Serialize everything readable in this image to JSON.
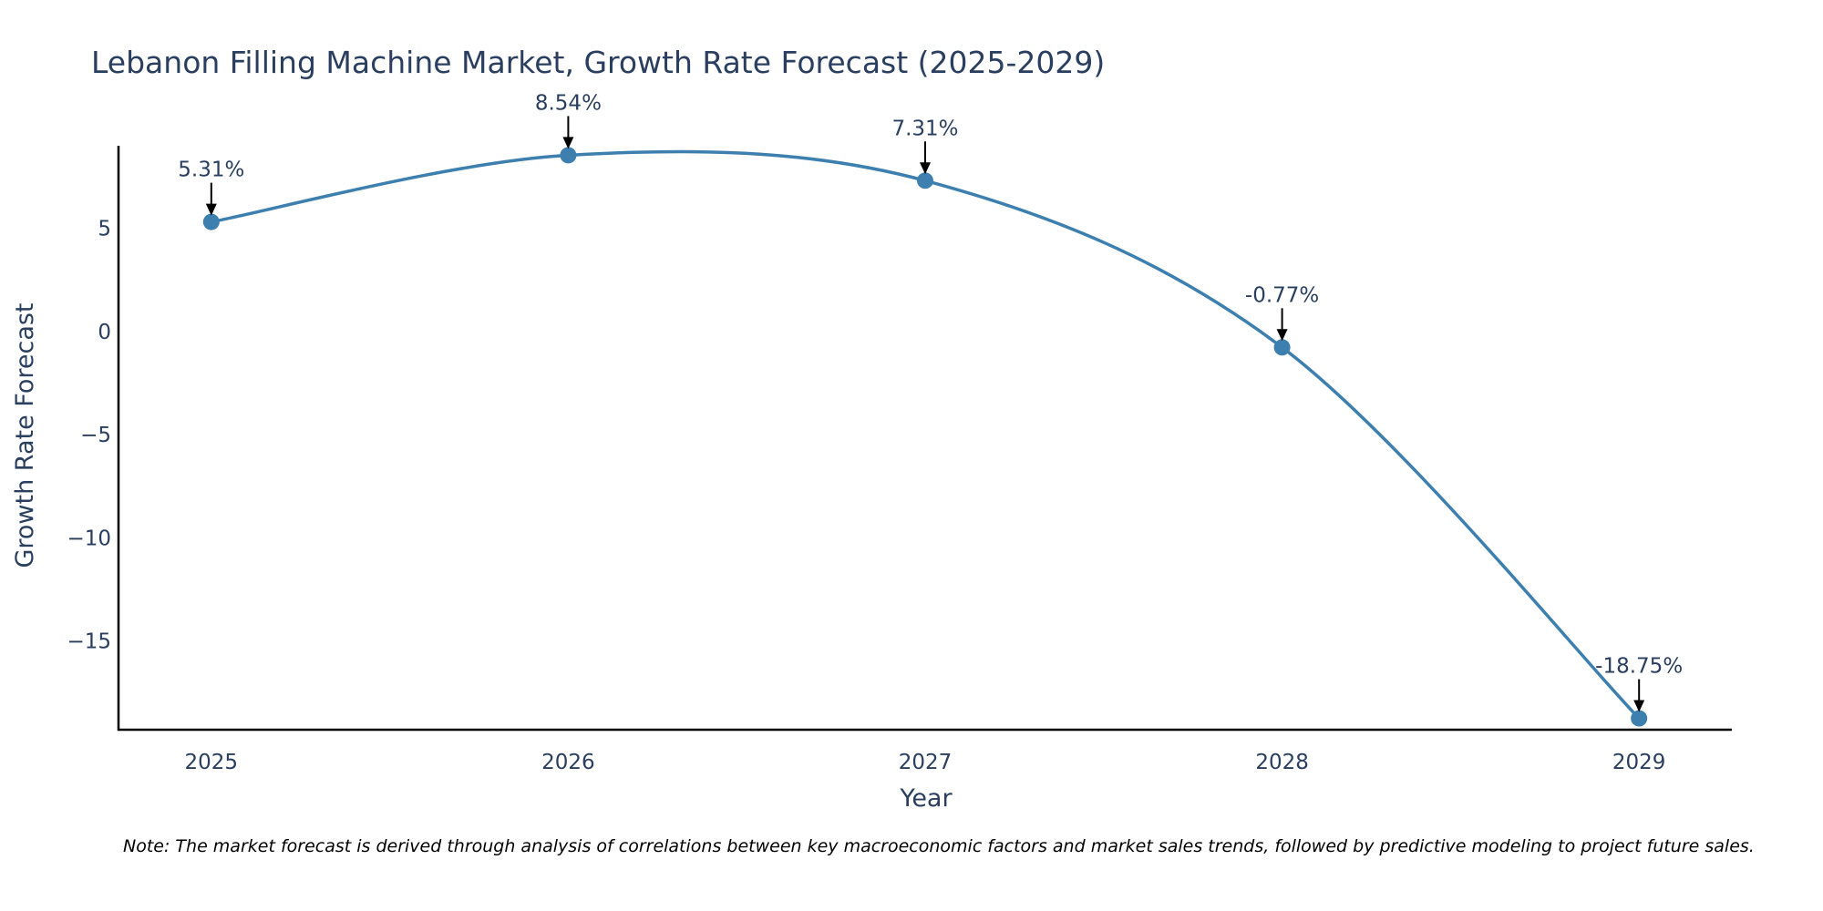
{
  "chart_data": {
    "type": "line",
    "title": "Lebanon Filling Machine Market, Growth Rate Forecast (2025-2029)",
    "xlabel": "Year",
    "ylabel": "Growth Rate Forecast",
    "x": [
      2025,
      2026,
      2027,
      2028,
      2029
    ],
    "values": [
      5.31,
      8.54,
      7.31,
      -0.77,
      -18.75
    ],
    "annotations": [
      "5.31%",
      "8.54%",
      "7.31%",
      "-0.77%",
      "-18.75%"
    ],
    "xticks": [
      "2025",
      "2026",
      "2027",
      "2028",
      "2029"
    ],
    "yticks": [
      5,
      0,
      -5,
      -10,
      -15
    ],
    "ytick_labels": [
      "5",
      "0",
      "−5",
      "−10",
      "−15"
    ],
    "xlim": [
      2024.74,
      2029.26
    ],
    "ylim": [
      -19.3,
      9.0
    ],
    "grid": false,
    "line_color": "#3d7fae",
    "marker_color": "#3d7fae"
  },
  "note": "Note: The market forecast is derived through analysis of correlations between key macroeconomic factors and market sales trends, followed by predictive modeling to project future sales."
}
